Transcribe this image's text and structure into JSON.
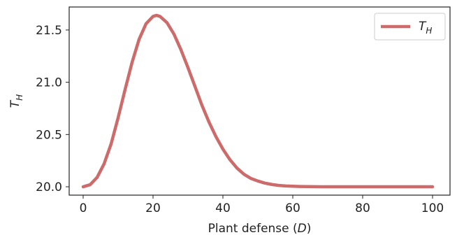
{
  "chart_data": {
    "type": "line",
    "title": "",
    "xlabel": {
      "main": "Plant defense (",
      "var": "D",
      "close": ")"
    },
    "ylabel": {
      "main": "T",
      "sub": "H"
    },
    "xlim": [
      -4,
      105
    ],
    "ylim": [
      19.92,
      21.72
    ],
    "xticks": [
      0,
      20,
      40,
      60,
      80,
      100
    ],
    "xtick_labels": [
      "0",
      "20",
      "40",
      "60",
      "80",
      "100"
    ],
    "yticks": [
      20.0,
      20.5,
      21.0,
      21.5
    ],
    "ytick_labels": [
      "20.0",
      "20.5",
      "21.0",
      "21.5"
    ],
    "grid": false,
    "legend_position": "top-right",
    "series": [
      {
        "name": {
          "main": "T",
          "sub": "H"
        },
        "color": "#cd6b6b",
        "x": [
          0,
          2,
          4,
          6,
          8,
          10,
          12,
          14,
          16,
          18,
          20,
          21,
          22,
          24,
          26,
          28,
          30,
          32,
          34,
          36,
          38,
          40,
          42,
          44,
          46,
          48,
          50,
          52,
          54,
          56,
          58,
          60,
          62,
          64,
          66,
          68,
          70,
          75,
          80,
          85,
          90,
          95,
          100
        ],
        "y": [
          20.0,
          20.02,
          20.09,
          20.22,
          20.41,
          20.66,
          20.93,
          21.19,
          21.41,
          21.56,
          21.63,
          21.64,
          21.63,
          21.57,
          21.46,
          21.31,
          21.14,
          20.96,
          20.78,
          20.62,
          20.48,
          20.36,
          20.26,
          20.18,
          20.12,
          20.08,
          20.055,
          20.035,
          20.022,
          20.013,
          20.008,
          20.005,
          20.003,
          20.002,
          20.001,
          20.0,
          20.0,
          20.0,
          20.0,
          20.0,
          20.0,
          20.0,
          20.0
        ]
      }
    ]
  }
}
